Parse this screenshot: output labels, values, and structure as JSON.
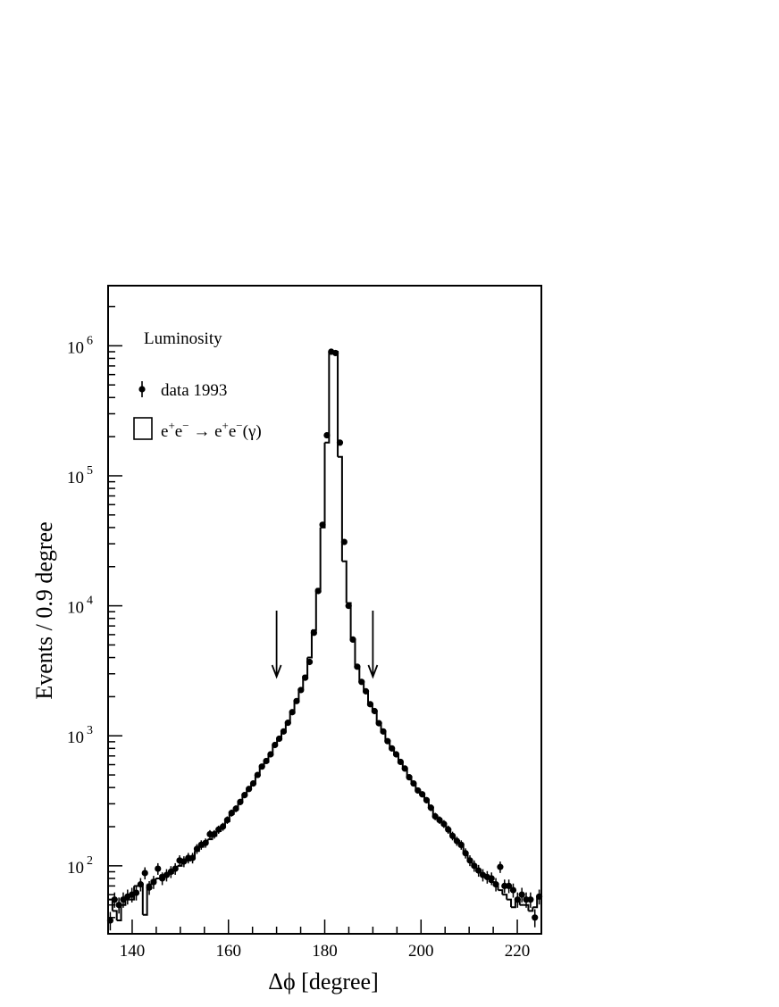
{
  "chart_data": {
    "type": "histogram",
    "xlabel": "Δϕ [degree]",
    "ylabel": "Events / 0.9 degree",
    "xlim": [
      135,
      225
    ],
    "ylim": [
      30,
      2900000
    ],
    "yscale": "log",
    "x_ticks": [
      140,
      160,
      180,
      200,
      220
    ],
    "y_ticks": [
      {
        "value": 100,
        "base": "10",
        "exp": "2"
      },
      {
        "value": 1000,
        "base": "10",
        "exp": "3"
      },
      {
        "value": 10000,
        "base": "10",
        "exp": "4"
      },
      {
        "value": 100000,
        "base": "10",
        "exp": "5"
      },
      {
        "value": 1000000,
        "base": "10",
        "exp": "6"
      }
    ],
    "legend_title": "Luminosity",
    "series": [
      {
        "name": "data 1993",
        "style": "points with error bars"
      },
      {
        "name": "e⁺e⁻ → e⁺e⁻(γ)",
        "style": "histogram"
      }
    ],
    "legend": {
      "title": "Luminosity",
      "data_label": "data 1993",
      "mc_label": {
        "e1": "e",
        "s1": "+",
        "e2": "e",
        "s2": "−",
        "arrow": " → ",
        "e3": "e",
        "s3": "+",
        "e4": "e",
        "s4": "−",
        "tail": "(γ)"
      }
    },
    "bin_width": 0.9,
    "bin_centers": [
      135.45,
      136.35,
      137.25,
      138.15,
      139.05,
      139.95,
      140.85,
      141.75,
      142.65,
      143.55,
      144.45,
      145.35,
      146.25,
      147.15,
      148.05,
      148.95,
      149.85,
      150.75,
      151.65,
      152.55,
      153.45,
      154.35,
      155.25,
      156.15,
      157.05,
      157.95,
      158.85,
      159.75,
      160.65,
      161.55,
      162.45,
      163.35,
      164.25,
      165.15,
      166.05,
      166.95,
      167.85,
      168.75,
      169.65,
      170.55,
      171.45,
      172.35,
      173.25,
      174.15,
      175.05,
      175.95,
      176.85,
      177.75,
      178.65,
      179.55,
      180.45,
      181.35,
      182.25,
      183.15,
      184.05,
      184.95,
      185.85,
      186.75,
      187.65,
      188.55,
      189.45,
      190.35,
      191.25,
      192.15,
      193.05,
      193.95,
      194.85,
      195.75,
      196.65,
      197.55,
      198.45,
      199.35,
      200.25,
      201.15,
      202.05,
      202.95,
      203.85,
      204.75,
      205.65,
      206.55,
      207.45,
      208.35,
      209.25,
      210.15,
      211.05,
      211.95,
      212.85,
      213.75,
      214.65,
      215.55,
      216.45,
      217.35,
      218.25,
      219.15,
      220.05,
      220.95,
      221.85,
      222.75,
      223.65,
      224.55
    ],
    "data_values": [
      38,
      55,
      50,
      55,
      58,
      60,
      62,
      72,
      88,
      68,
      75,
      95,
      80,
      85,
      90,
      95,
      110,
      108,
      115,
      115,
      135,
      145,
      150,
      175,
      175,
      190,
      200,
      225,
      255,
      275,
      310,
      350,
      390,
      430,
      500,
      580,
      640,
      720,
      850,
      950,
      1080,
      1260,
      1520,
      1850,
      2250,
      2800,
      3700,
      6200,
      13000,
      42000,
      205000,
      900000,
      880000,
      180000,
      31000,
      10000,
      5500,
      3400,
      2600,
      2200,
      1750,
      1550,
      1250,
      1080,
      910,
      800,
      720,
      630,
      560,
      480,
      430,
      380,
      355,
      320,
      280,
      240,
      225,
      210,
      190,
      170,
      155,
      145,
      125,
      110,
      100,
      92,
      85,
      82,
      80,
      72,
      98,
      70,
      70,
      65,
      55,
      60,
      55,
      55,
      40,
      58
    ],
    "mc_values": [
      55,
      45,
      38,
      50,
      55,
      55,
      70,
      70,
      42,
      72,
      78,
      80,
      85,
      85,
      88,
      95,
      100,
      108,
      110,
      115,
      130,
      140,
      150,
      160,
      170,
      185,
      200,
      220,
      250,
      275,
      310,
      350,
      390,
      430,
      500,
      580,
      630,
      720,
      850,
      950,
      1080,
      1260,
      1500,
      1850,
      2300,
      2900,
      4000,
      6500,
      13500,
      40000,
      180000,
      900000,
      900000,
      140000,
      22000,
      10500,
      5500,
      3400,
      2600,
      2200,
      1750,
      1550,
      1250,
      1080,
      910,
      790,
      710,
      620,
      550,
      480,
      430,
      380,
      350,
      320,
      280,
      240,
      220,
      210,
      190,
      170,
      155,
      140,
      125,
      110,
      100,
      90,
      85,
      82,
      75,
      70,
      65,
      60,
      55,
      48,
      55,
      50,
      50,
      45,
      48,
      58
    ],
    "arrows_x": [
      170,
      190
    ]
  }
}
